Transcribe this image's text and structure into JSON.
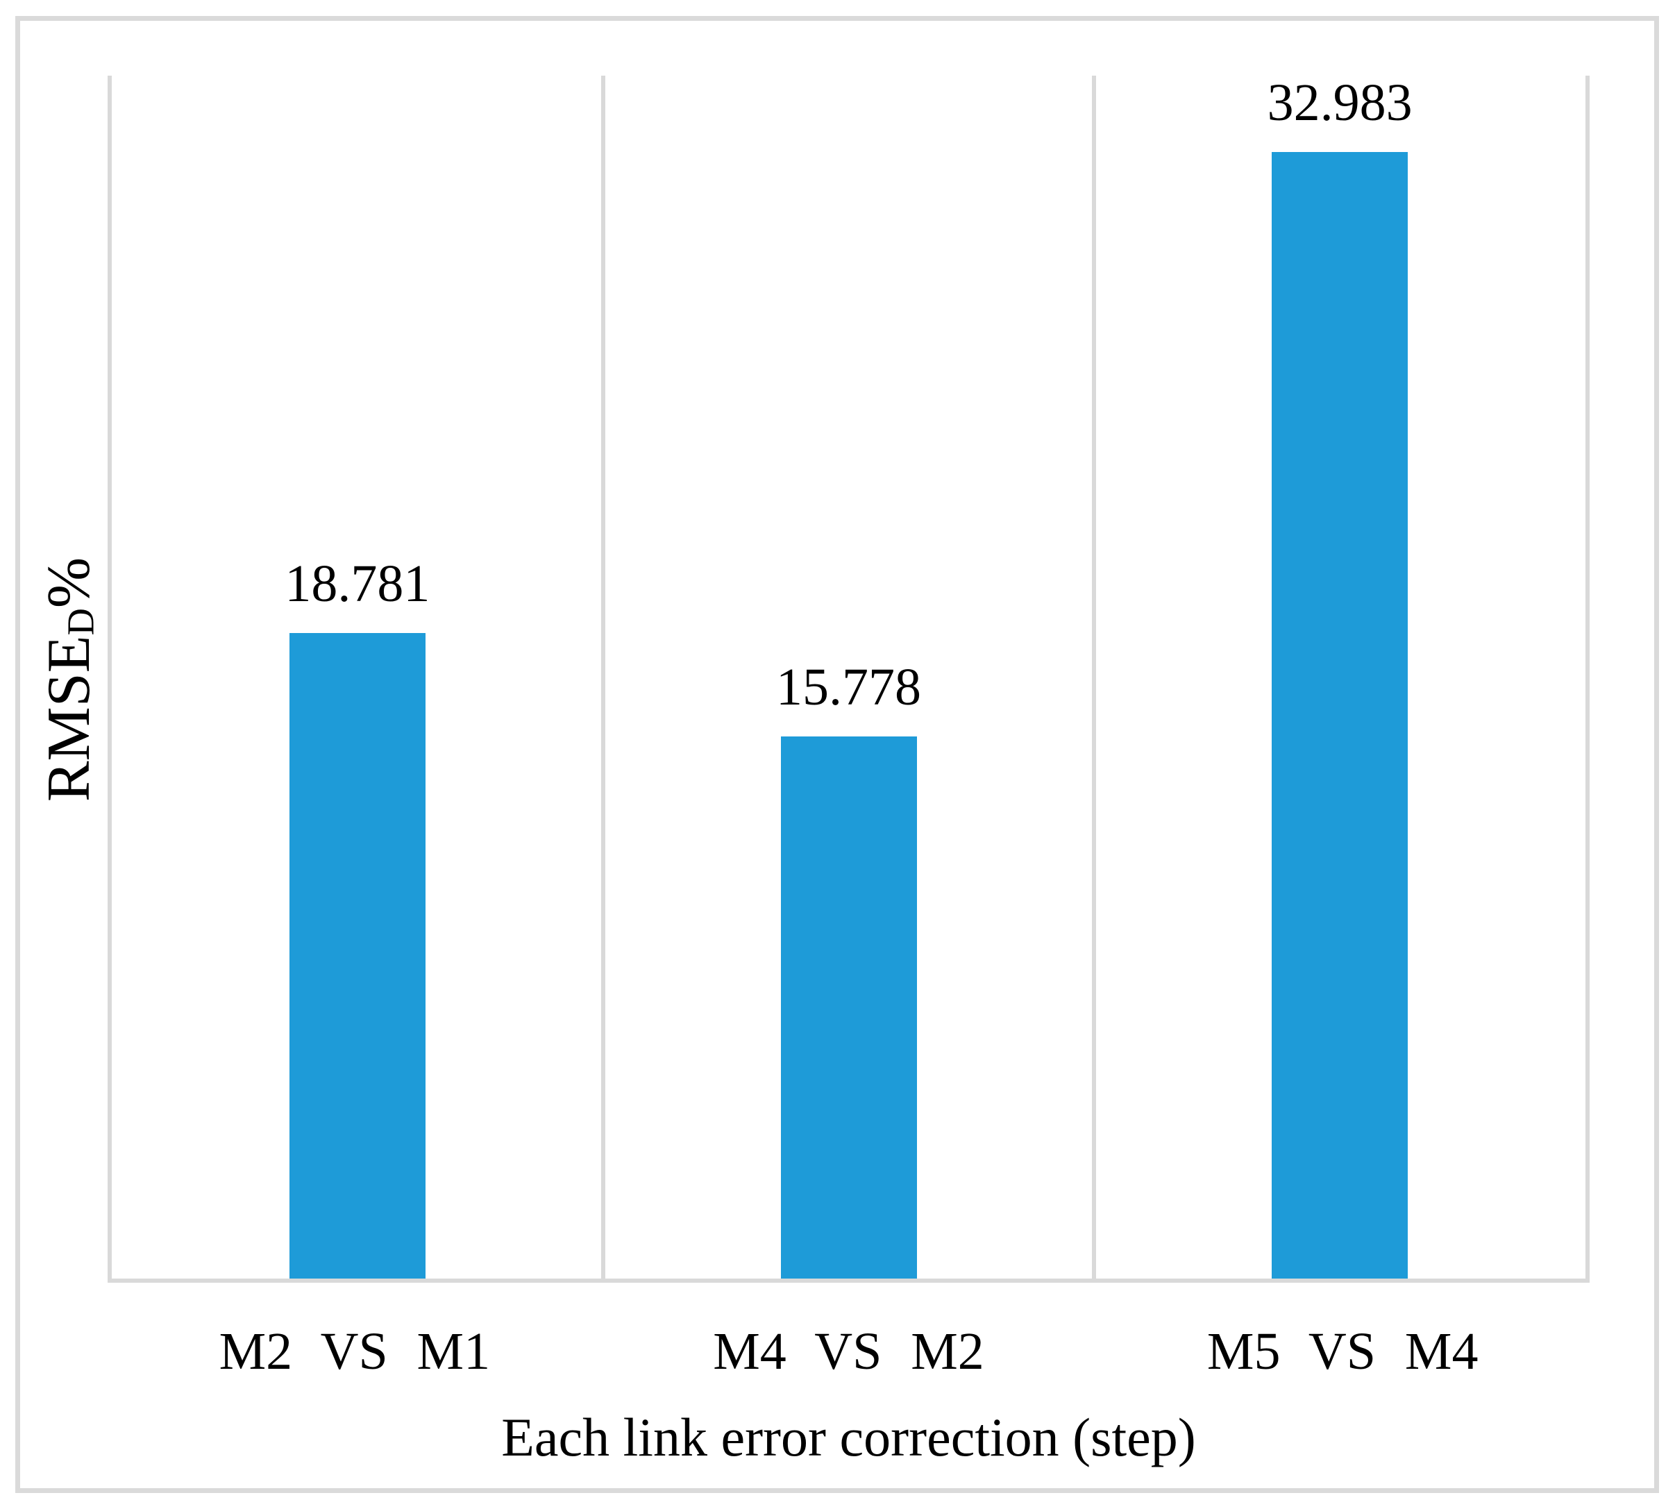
{
  "chart_data": {
    "type": "bar",
    "title": "",
    "categories": [
      "M2 VS M1",
      "M4 VS M2",
      "M5 VS M4"
    ],
    "values": [
      18.781,
      15.778,
      32.983
    ],
    "value_labels": [
      "18.781",
      "15.778",
      "32.983"
    ],
    "xlabel": "Each link error correction (step)",
    "ylabel": {
      "prefix": "RMSE",
      "subscript": "D",
      "suffix": "%"
    },
    "ylim": [
      0,
      35
    ],
    "yticks": "none",
    "legend": "none",
    "grid": "vertical panel separator lines only",
    "series_count": 1,
    "colors": {
      "bar": "#1e9bd8",
      "gridline": "#d9d9d9",
      "axis_line": "#d9d9d9",
      "figure_border": "#dadada",
      "text": "#000000",
      "background": "#ffffff"
    }
  }
}
